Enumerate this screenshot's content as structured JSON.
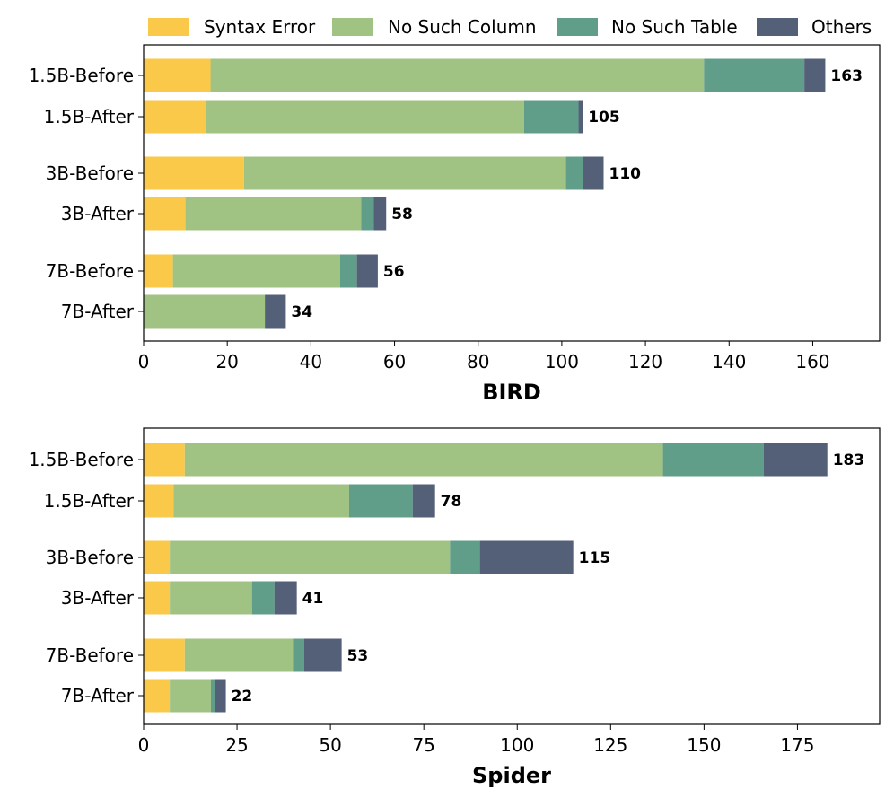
{
  "legend": {
    "placement": "top-center",
    "entries": [
      {
        "label": "Syntax Error",
        "color": "#fbc94a"
      },
      {
        "label": "No Such Column",
        "color": "#a0c282"
      },
      {
        "label": "No Such Table",
        "color": "#619e8a"
      },
      {
        "label": "Others",
        "color": "#545f78"
      }
    ]
  },
  "chart_data": [
    {
      "type": "bar",
      "orientation": "horizontal",
      "stacked": true,
      "xlabel": "BIRD",
      "xlim": [
        0,
        176
      ],
      "xticks": [
        0,
        20,
        40,
        60,
        80,
        100,
        120,
        140,
        160
      ],
      "grid": false,
      "categories": [
        "1.5B-Before",
        "1.5B-After",
        "3B-Before",
        "3B-After",
        "7B-Before",
        "7B-After"
      ],
      "series": [
        {
          "name": "Syntax Error",
          "values": [
            16,
            15,
            24,
            10,
            7,
            0
          ]
        },
        {
          "name": "No Such Column",
          "values": [
            118,
            76,
            77,
            42,
            40,
            29
          ]
        },
        {
          "name": "No Such Table",
          "values": [
            24,
            13,
            4,
            3,
            4,
            0
          ]
        },
        {
          "name": "Others",
          "values": [
            5,
            1,
            5,
            3,
            5,
            5
          ]
        }
      ],
      "totals": [
        163,
        105,
        110,
        58,
        56,
        34
      ]
    },
    {
      "type": "bar",
      "orientation": "horizontal",
      "stacked": true,
      "xlabel": "Spider",
      "xlim": [
        0,
        197
      ],
      "xticks": [
        0,
        25,
        50,
        75,
        100,
        125,
        150,
        175
      ],
      "grid": false,
      "categories": [
        "1.5B-Before",
        "1.5B-After",
        "3B-Before",
        "3B-After",
        "7B-Before",
        "7B-After"
      ],
      "series": [
        {
          "name": "Syntax Error",
          "values": [
            11,
            8,
            7,
            7,
            11,
            7
          ]
        },
        {
          "name": "No Such Column",
          "values": [
            128,
            47,
            75,
            22,
            29,
            11
          ]
        },
        {
          "name": "No Such Table",
          "values": [
            27,
            17,
            8,
            6,
            3,
            1
          ]
        },
        {
          "name": "Others",
          "values": [
            17,
            6,
            25,
            6,
            10,
            3
          ]
        }
      ],
      "totals": [
        183,
        78,
        115,
        41,
        53,
        22
      ]
    }
  ]
}
